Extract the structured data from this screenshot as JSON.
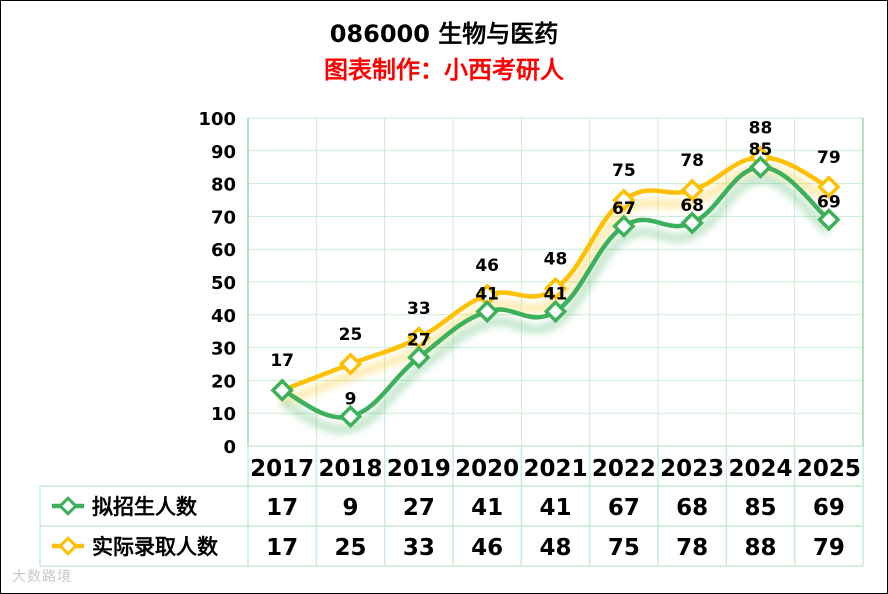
{
  "chart_data": {
    "type": "line",
    "title": "086000 生物与医药",
    "subtitle": "图表制作：小西考研人",
    "categories": [
      "2017",
      "2018",
      "2019",
      "2020",
      "2021",
      "2022",
      "2023",
      "2024",
      "2025"
    ],
    "ylim": [
      0,
      100
    ],
    "yticks": [
      0,
      10,
      20,
      30,
      40,
      50,
      60,
      70,
      80,
      90,
      100
    ],
    "grid": true,
    "legend": "data-table-below",
    "series": [
      {
        "name": "拟招生人数",
        "color": "#3cb05b",
        "values": [
          17,
          9,
          27,
          41,
          41,
          67,
          68,
          85,
          69
        ]
      },
      {
        "name": "实际录取人数",
        "color": "#ffc000",
        "values": [
          17,
          25,
          33,
          46,
          48,
          75,
          78,
          88,
          79
        ]
      }
    ]
  },
  "watermark": "大数路境"
}
